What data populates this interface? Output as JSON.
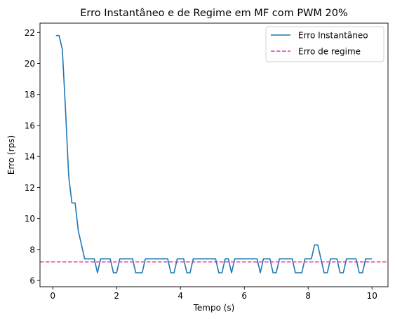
{
  "chart_data": {
    "type": "line",
    "title": "Erro Instantâneo e de Regime em MF com PWM 20%",
    "xlabel": "Tempo (s)",
    "ylabel": "Erro (rps)",
    "xlim": [
      -0.4,
      10.5
    ],
    "ylim": [
      5.6,
      22.6
    ],
    "xticks": [
      0,
      2,
      4,
      6,
      8,
      10
    ],
    "yticks": [
      6,
      8,
      10,
      12,
      14,
      16,
      18,
      20,
      22
    ],
    "grid": false,
    "legend_position": "top-right",
    "series": [
      {
        "name": "Erro Instantâneo",
        "style": "solid",
        "color": "#1f77b4",
        "x": [
          0.1,
          0.2,
          0.3,
          0.4,
          0.5,
          0.6,
          0.7,
          0.8,
          0.9,
          1.0,
          1.1,
          1.2,
          1.3,
          1.4,
          1.5,
          1.6,
          1.7,
          1.8,
          1.9,
          2.0,
          2.1,
          2.2,
          2.3,
          2.4,
          2.5,
          2.6,
          2.7,
          2.8,
          2.9,
          3.0,
          3.1,
          3.2,
          3.3,
          3.4,
          3.5,
          3.6,
          3.7,
          3.8,
          3.9,
          4.0,
          4.1,
          4.2,
          4.3,
          4.4,
          4.5,
          4.6,
          4.7,
          4.8,
          4.9,
          5.0,
          5.1,
          5.2,
          5.3,
          5.4,
          5.5,
          5.6,
          5.7,
          5.8,
          5.9,
          6.0,
          6.1,
          6.2,
          6.3,
          6.4,
          6.5,
          6.6,
          6.7,
          6.8,
          6.9,
          7.0,
          7.1,
          7.2,
          7.3,
          7.4,
          7.5,
          7.6,
          7.7,
          7.8,
          7.9,
          8.0,
          8.1,
          8.2,
          8.3,
          8.4,
          8.5,
          8.6,
          8.7,
          8.8,
          8.9,
          9.0,
          9.1,
          9.2,
          9.3,
          9.4,
          9.5,
          9.6,
          9.7,
          9.8,
          9.9,
          10.0
        ],
        "y": [
          21.8,
          21.8,
          20.9,
          17.0,
          12.7,
          11.0,
          11.0,
          9.2,
          8.3,
          7.4,
          7.4,
          7.4,
          7.4,
          6.5,
          7.4,
          7.4,
          7.4,
          7.4,
          6.5,
          6.5,
          7.4,
          7.4,
          7.4,
          7.4,
          7.4,
          6.5,
          6.5,
          6.5,
          7.4,
          7.4,
          7.4,
          7.4,
          7.4,
          7.4,
          7.4,
          7.4,
          6.5,
          6.5,
          7.4,
          7.4,
          7.4,
          6.5,
          6.5,
          7.4,
          7.4,
          7.4,
          7.4,
          7.4,
          7.4,
          7.4,
          7.4,
          6.5,
          6.5,
          7.4,
          7.4,
          6.5,
          7.4,
          7.4,
          7.4,
          7.4,
          7.4,
          7.4,
          7.4,
          7.4,
          6.5,
          7.4,
          7.4,
          7.4,
          6.5,
          6.5,
          7.4,
          7.4,
          7.4,
          7.4,
          7.4,
          6.5,
          6.5,
          6.5,
          7.4,
          7.4,
          7.4,
          8.3,
          8.3,
          7.4,
          6.5,
          6.5,
          7.4,
          7.4,
          7.4,
          6.5,
          6.5,
          7.4,
          7.4,
          7.4,
          7.4,
          6.5,
          6.5,
          7.4,
          7.4,
          7.4
        ]
      },
      {
        "name": "Erro de regime",
        "style": "dashed",
        "color": "#e0389a",
        "y_constant": 7.2
      }
    ]
  }
}
